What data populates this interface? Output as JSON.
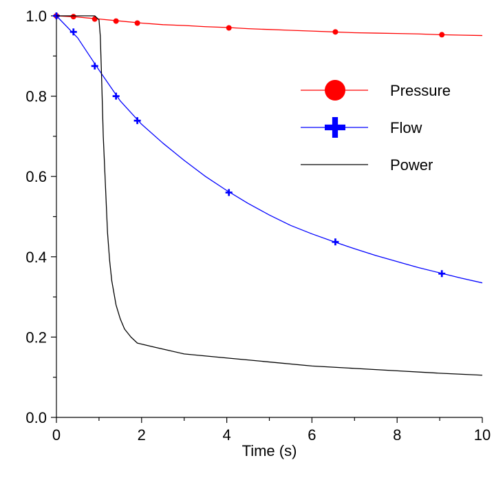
{
  "chart_data": {
    "type": "line",
    "title": "",
    "xlabel": "Time (s)",
    "ylabel": "",
    "xlim": [
      0,
      10
    ],
    "ylim": [
      0,
      1.0
    ],
    "xticks": [
      0,
      2,
      4,
      6,
      8,
      10
    ],
    "yticks": [
      0.0,
      0.2,
      0.4,
      0.6,
      0.8,
      1.0
    ],
    "xtick_labels": [
      "0",
      "2",
      "4",
      "6",
      "8",
      "10"
    ],
    "ytick_labels": [
      "0.0",
      "0.2",
      "0.4",
      "0.6",
      "0.8",
      "1.0"
    ],
    "grid": false,
    "legend_position": "top-right",
    "series": [
      {
        "name": "Pressure",
        "color": "#ff0000",
        "marker": "circle",
        "x": [
          0,
          0.4,
          0.9,
          1.4,
          1.9,
          4.05,
          6.55,
          9.05
        ],
        "y": [
          1.0,
          0.998,
          0.992,
          0.987,
          0.982,
          0.97,
          0.96,
          0.953
        ],
        "curve_x": [
          0,
          0.5,
          1,
          1.5,
          2,
          2.5,
          3,
          3.5,
          4,
          4.5,
          5,
          5.5,
          6,
          6.5,
          7,
          7.5,
          8,
          8.5,
          9,
          9.5,
          10
        ],
        "curve_y": [
          1.0,
          0.997,
          0.992,
          0.987,
          0.982,
          0.978,
          0.976,
          0.973,
          0.971,
          0.968,
          0.966,
          0.964,
          0.962,
          0.96,
          0.958,
          0.957,
          0.956,
          0.955,
          0.953,
          0.952,
          0.951
        ]
      },
      {
        "name": "Flow",
        "color": "#0000ff",
        "marker": "plus",
        "x": [
          0,
          0.4,
          0.9,
          1.4,
          1.9,
          4.05,
          6.55,
          9.05
        ],
        "y": [
          1.0,
          0.96,
          0.875,
          0.8,
          0.739,
          0.56,
          0.437,
          0.358
        ],
        "curve_x": [
          0,
          0.5,
          1,
          1.5,
          2,
          2.5,
          3,
          3.5,
          4,
          4.5,
          5,
          5.5,
          6,
          6.5,
          7,
          7.5,
          8,
          8.5,
          9,
          9.5,
          10
        ],
        "curve_y": [
          1.0,
          0.945,
          0.865,
          0.788,
          0.73,
          0.683,
          0.64,
          0.6,
          0.565,
          0.533,
          0.504,
          0.478,
          0.457,
          0.438,
          0.42,
          0.403,
          0.388,
          0.373,
          0.36,
          0.347,
          0.335
        ]
      },
      {
        "name": "Power",
        "color": "#000000",
        "marker": "none",
        "x": [
          0,
          0.9,
          1.0,
          1.03,
          1.06,
          1.1,
          1.15,
          1.2,
          1.25,
          1.3,
          1.4,
          1.5,
          1.6,
          1.75,
          1.9,
          2.3,
          3.0,
          4.0,
          5.0,
          6.0,
          7.0,
          8.0,
          9.0,
          10.0
        ],
        "y": [
          1.0,
          1.0,
          0.99,
          0.95,
          0.85,
          0.7,
          0.58,
          0.46,
          0.39,
          0.34,
          0.28,
          0.245,
          0.22,
          0.2,
          0.185,
          0.175,
          0.158,
          0.148,
          0.138,
          0.128,
          0.122,
          0.116,
          0.11,
          0.105
        ]
      }
    ]
  }
}
